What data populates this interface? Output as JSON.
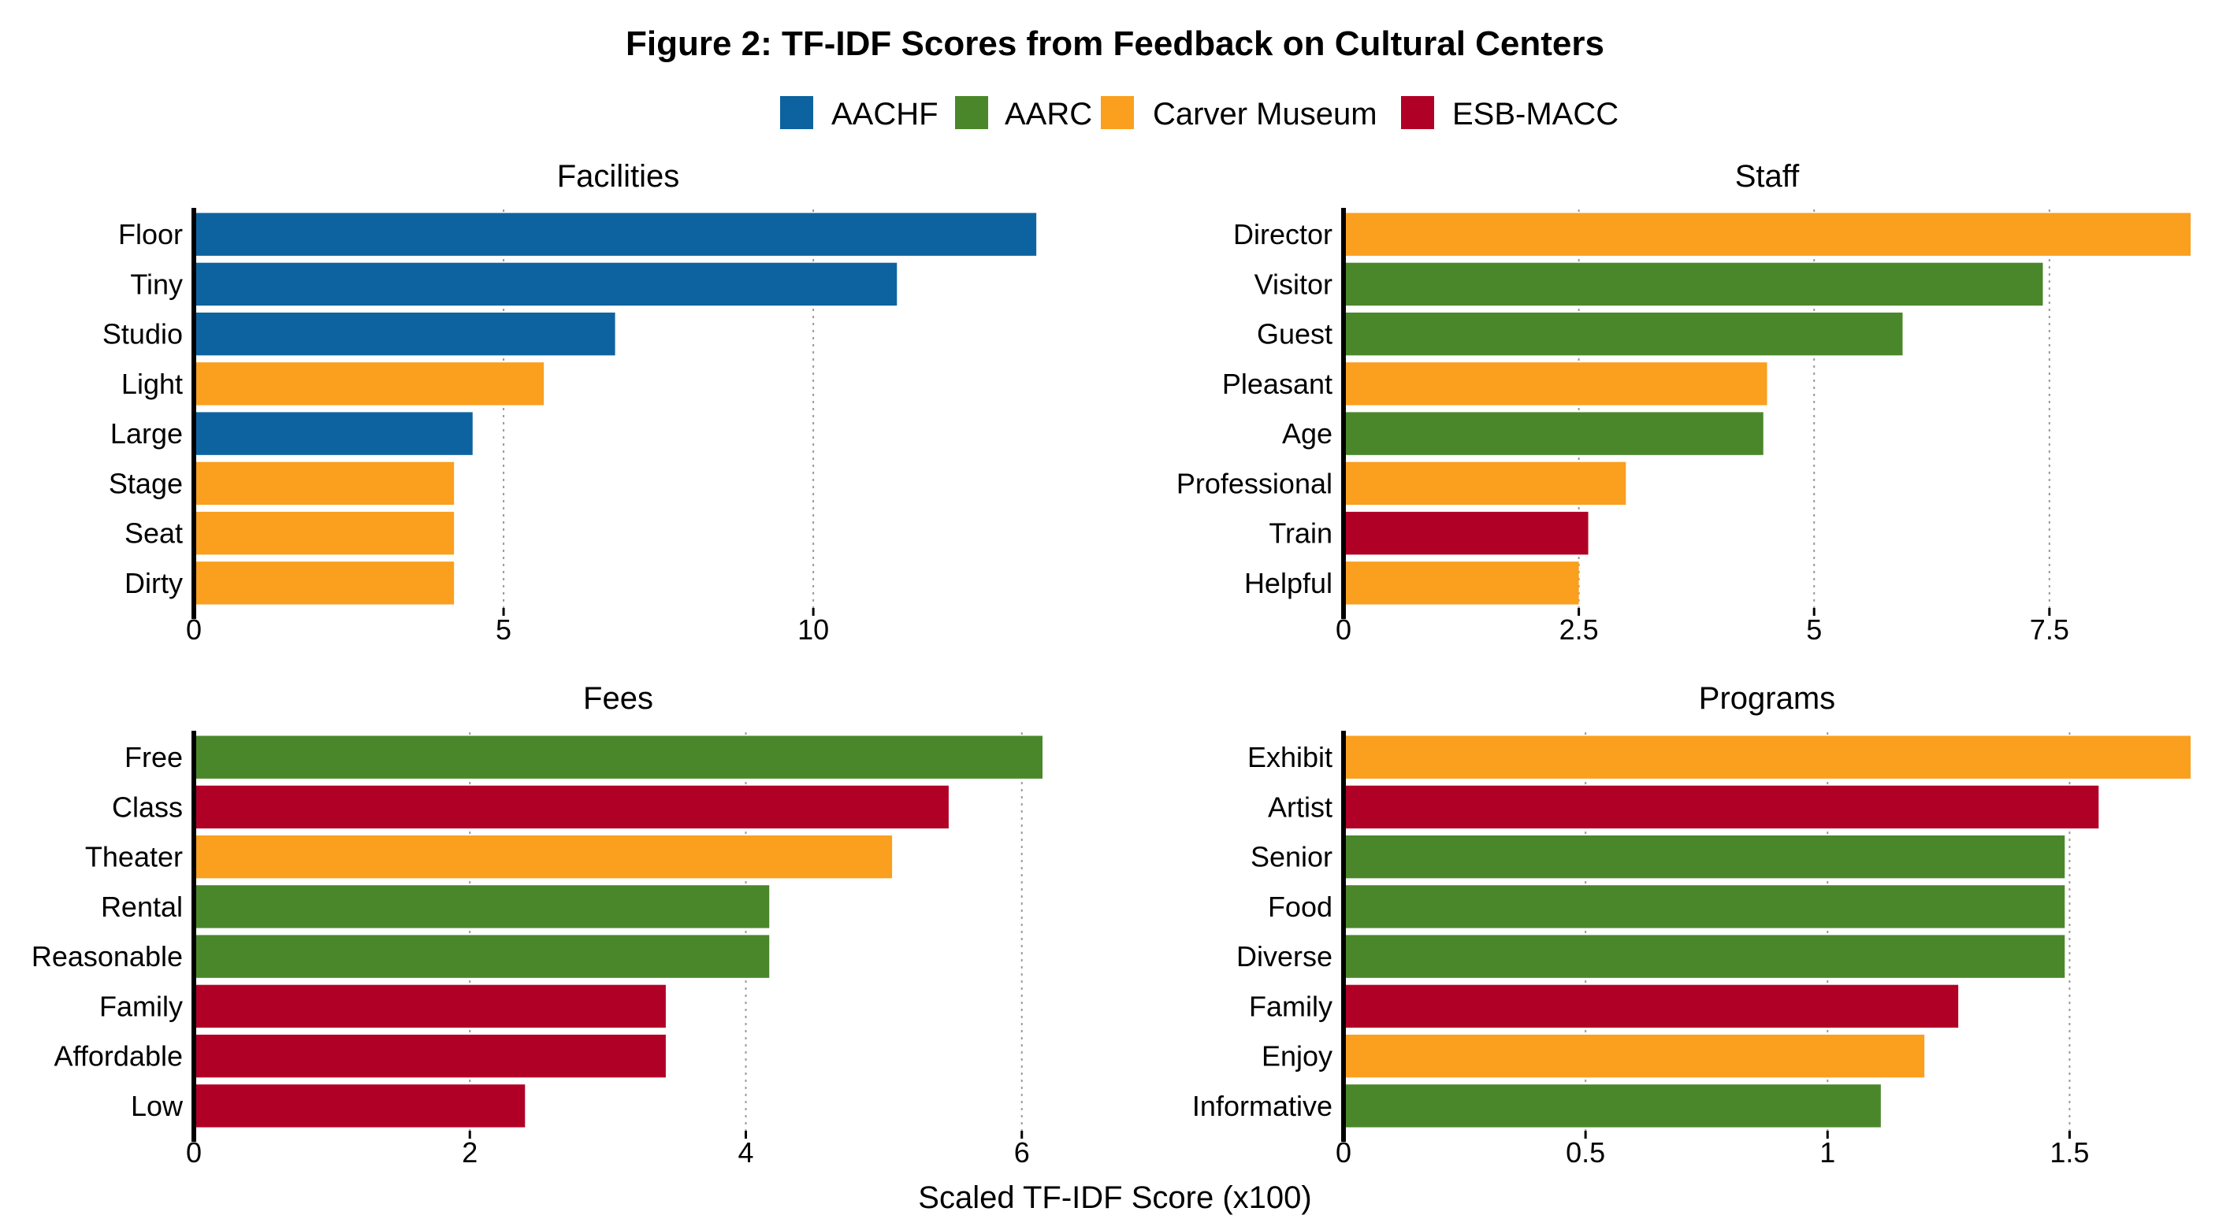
{
  "figure": {
    "title": "Figure 2: TF-IDF Scores from Feedback on Cultural Centers",
    "x_axis_title": "Scaled TF-IDF Score (x100)"
  },
  "legend": [
    {
      "name": "AACHF",
      "color": "#0D63A0"
    },
    {
      "name": "AARC",
      "color": "#4A872A"
    },
    {
      "name": "Carver Museum",
      "color": "#FA9F1E"
    },
    {
      "name": "ESB-MACC",
      "color": "#B10026"
    }
  ],
  "chart_data": [
    {
      "type": "bar",
      "orientation": "horizontal",
      "title": "Facilities",
      "xlabel": "Scaled TF-IDF Score (x100)",
      "xlim": [
        0,
        13.7
      ],
      "xticks": [
        0,
        5,
        10
      ],
      "xtick_labels": [
        "0",
        "5",
        "10"
      ],
      "grid": "vertical dotted",
      "bars": [
        {
          "label": "Floor",
          "value": 13.6,
          "center": "AACHF"
        },
        {
          "label": "Tiny",
          "value": 11.35,
          "center": "AACHF"
        },
        {
          "label": "Studio",
          "value": 6.8,
          "center": "AACHF"
        },
        {
          "label": "Light",
          "value": 5.65,
          "center": "Carver Museum"
        },
        {
          "label": "Large",
          "value": 4.5,
          "center": "AACHF"
        },
        {
          "label": "Stage",
          "value": 4.2,
          "center": "Carver Museum"
        },
        {
          "label": "Seat",
          "value": 4.2,
          "center": "Carver Museum"
        },
        {
          "label": "Dirty",
          "value": 4.2,
          "center": "Carver Museum"
        }
      ]
    },
    {
      "type": "bar",
      "orientation": "horizontal",
      "title": "Staff",
      "xlabel": "Scaled TF-IDF Score (x100)",
      "xlim": [
        0,
        9.0
      ],
      "xticks": [
        0,
        2.5,
        5,
        7.5
      ],
      "xtick_labels": [
        "0",
        "2.5",
        "5",
        "7.5"
      ],
      "grid": "vertical dotted",
      "bars": [
        {
          "label": "Director",
          "value": 9.0,
          "center": "Carver Museum"
        },
        {
          "label": "Visitor",
          "value": 7.43,
          "center": "AARC"
        },
        {
          "label": "Guest",
          "value": 5.94,
          "center": "AARC"
        },
        {
          "label": "Pleasant",
          "value": 4.5,
          "center": "Carver Museum"
        },
        {
          "label": "Age",
          "value": 4.46,
          "center": "AARC"
        },
        {
          "label": "Professional",
          "value": 3.0,
          "center": "Carver Museum"
        },
        {
          "label": "Train",
          "value": 2.6,
          "center": "ESB-MACC"
        },
        {
          "label": "Helpful",
          "value": 2.5,
          "center": "Carver Museum"
        }
      ]
    },
    {
      "type": "bar",
      "orientation": "horizontal",
      "title": "Fees",
      "xlabel": "Scaled TF-IDF Score (x100)",
      "xlim": [
        0,
        6.15
      ],
      "xticks": [
        0,
        2,
        4,
        6
      ],
      "xtick_labels": [
        "0",
        "2",
        "4",
        "6"
      ],
      "grid": "vertical dotted",
      "bars": [
        {
          "label": "Free",
          "value": 6.15,
          "center": "AARC"
        },
        {
          "label": "Class",
          "value": 5.47,
          "center": "ESB-MACC"
        },
        {
          "label": "Theater",
          "value": 5.06,
          "center": "Carver Museum"
        },
        {
          "label": "Rental",
          "value": 4.17,
          "center": "AARC"
        },
        {
          "label": "Reasonable",
          "value": 4.17,
          "center": "AARC"
        },
        {
          "label": "Family",
          "value": 3.42,
          "center": "ESB-MACC"
        },
        {
          "label": "Affordable",
          "value": 3.42,
          "center": "ESB-MACC"
        },
        {
          "label": "Low",
          "value": 2.4,
          "center": "ESB-MACC"
        }
      ]
    },
    {
      "type": "bar",
      "orientation": "horizontal",
      "title": "Programs",
      "xlabel": "Scaled TF-IDF Score (x100)",
      "xlim": [
        0,
        1.75
      ],
      "xticks": [
        0,
        0.5,
        1,
        1.5
      ],
      "xtick_labels": [
        "0",
        "0.5",
        "1",
        "1.5"
      ],
      "grid": "vertical dotted",
      "bars": [
        {
          "label": "Exhibit",
          "value": 1.75,
          "center": "Carver Museum"
        },
        {
          "label": "Artist",
          "value": 1.56,
          "center": "ESB-MACC"
        },
        {
          "label": "Senior",
          "value": 1.49,
          "center": "AARC"
        },
        {
          "label": "Food",
          "value": 1.49,
          "center": "AARC"
        },
        {
          "label": "Diverse",
          "value": 1.49,
          "center": "AARC"
        },
        {
          "label": "Family",
          "value": 1.27,
          "center": "ESB-MACC"
        },
        {
          "label": "Enjoy",
          "value": 1.2,
          "center": "Carver Museum"
        },
        {
          "label": "Informative",
          "value": 1.11,
          "center": "AARC"
        }
      ]
    }
  ]
}
